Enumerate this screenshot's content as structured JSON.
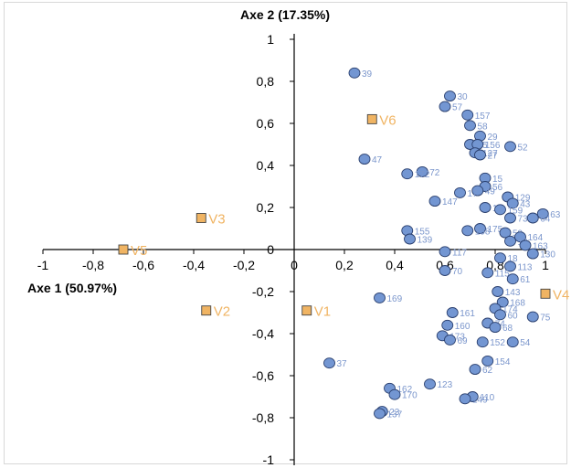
{
  "chart_data": {
    "type": "scatter",
    "xlabel": "Axe 1 (50.97%)",
    "ylabel": "Axe 2 (17.35%)",
    "xlim": [
      -1,
      1
    ],
    "ylim": [
      -1,
      1
    ],
    "x_ticks": [
      "-1",
      "-0,8",
      "-0,6",
      "-0,4",
      "-0,2",
      "0",
      "0,2",
      "0,4",
      "0,6",
      "0,8",
      "1"
    ],
    "y_ticks": [
      "1",
      "0,8",
      "0,6",
      "0,4",
      "0,2",
      "0",
      "-0,2",
      "-0,4",
      "-0,6",
      "-0,8",
      "-1"
    ],
    "colors": {
      "observation": "#7396d2",
      "observation_label": "#7b96cc",
      "variable": "#f0b463"
    },
    "observations": [
      {
        "label": "39",
        "x": 0.24,
        "y": 0.84
      },
      {
        "label": "30",
        "x": 0.62,
        "y": 0.73
      },
      {
        "label": "57",
        "x": 0.6,
        "y": 0.68
      },
      {
        "label": "157",
        "x": 0.69,
        "y": 0.64
      },
      {
        "label": "58",
        "x": 0.7,
        "y": 0.59
      },
      {
        "label": "29",
        "x": 0.74,
        "y": 0.54
      },
      {
        "label": "55",
        "x": 0.7,
        "y": 0.5
      },
      {
        "label": "156",
        "x": 0.73,
        "y": 0.5
      },
      {
        "label": "52",
        "x": 0.86,
        "y": 0.49
      },
      {
        "label": "127",
        "x": 0.72,
        "y": 0.46
      },
      {
        "label": "27",
        "x": 0.74,
        "y": 0.45
      },
      {
        "label": "47",
        "x": 0.28,
        "y": 0.43
      },
      {
        "label": "72",
        "x": 0.51,
        "y": 0.37
      },
      {
        "label": "172",
        "x": 0.45,
        "y": 0.36
      },
      {
        "label": "15",
        "x": 0.76,
        "y": 0.34
      },
      {
        "label": "56",
        "x": 0.76,
        "y": 0.3
      },
      {
        "label": "49",
        "x": 0.73,
        "y": 0.28
      },
      {
        "label": "17",
        "x": 0.66,
        "y": 0.27
      },
      {
        "label": "129",
        "x": 0.85,
        "y": 0.25
      },
      {
        "label": "43",
        "x": 0.87,
        "y": 0.22
      },
      {
        "label": "147",
        "x": 0.56,
        "y": 0.23
      },
      {
        "label": "10",
        "x": 0.76,
        "y": 0.2
      },
      {
        "label": "159",
        "x": 0.82,
        "y": 0.19
      },
      {
        "label": "63",
        "x": 0.99,
        "y": 0.17
      },
      {
        "label": "73",
        "x": 0.86,
        "y": 0.15
      },
      {
        "label": "64",
        "x": 0.95,
        "y": 0.15
      },
      {
        "label": "155",
        "x": 0.45,
        "y": 0.09
      },
      {
        "label": "175",
        "x": 0.74,
        "y": 0.1
      },
      {
        "label": "59",
        "x": 0.84,
        "y": 0.08
      },
      {
        "label": "164",
        "x": 0.9,
        "y": 0.06
      },
      {
        "label": "139",
        "x": 0.46,
        "y": 0.05
      },
      {
        "label": "158",
        "x": 0.69,
        "y": 0.09
      },
      {
        "label": "13",
        "x": 0.86,
        "y": 0.04
      },
      {
        "label": "163",
        "x": 0.92,
        "y": 0.02
      },
      {
        "label": "117",
        "x": 0.6,
        "y": -0.01
      },
      {
        "label": "130",
        "x": 0.95,
        "y": -0.02
      },
      {
        "label": "18",
        "x": 0.82,
        "y": -0.04
      },
      {
        "label": "113",
        "x": 0.86,
        "y": -0.08
      },
      {
        "label": "70",
        "x": 0.6,
        "y": -0.1
      },
      {
        "label": "115",
        "x": 0.77,
        "y": -0.11
      },
      {
        "label": "61",
        "x": 0.87,
        "y": -0.14
      },
      {
        "label": "143",
        "x": 0.81,
        "y": -0.2
      },
      {
        "label": "169",
        "x": 0.34,
        "y": -0.23
      },
      {
        "label": "168",
        "x": 0.83,
        "y": -0.25
      },
      {
        "label": "161",
        "x": 0.63,
        "y": -0.3
      },
      {
        "label": "174",
        "x": 0.8,
        "y": -0.28
      },
      {
        "label": "60",
        "x": 0.82,
        "y": -0.31
      },
      {
        "label": "75",
        "x": 0.95,
        "y": -0.32
      },
      {
        "label": "160",
        "x": 0.61,
        "y": -0.36
      },
      {
        "label": "74",
        "x": 0.77,
        "y": -0.35
      },
      {
        "label": "68",
        "x": 0.8,
        "y": -0.37
      },
      {
        "label": "173",
        "x": 0.59,
        "y": -0.41
      },
      {
        "label": "69",
        "x": 0.62,
        "y": -0.43
      },
      {
        "label": "152",
        "x": 0.75,
        "y": -0.44
      },
      {
        "label": "54",
        "x": 0.87,
        "y": -0.44
      },
      {
        "label": "154",
        "x": 0.77,
        "y": -0.53
      },
      {
        "label": "37",
        "x": 0.14,
        "y": -0.54
      },
      {
        "label": "62",
        "x": 0.72,
        "y": -0.57
      },
      {
        "label": "123",
        "x": 0.54,
        "y": -0.64
      },
      {
        "label": "162",
        "x": 0.38,
        "y": -0.66
      },
      {
        "label": "170",
        "x": 0.4,
        "y": -0.69
      },
      {
        "label": "110",
        "x": 0.71,
        "y": -0.7
      },
      {
        "label": "149",
        "x": 0.68,
        "y": -0.71
      },
      {
        "label": "23",
        "x": 0.35,
        "y": -0.77
      },
      {
        "label": "137",
        "x": 0.34,
        "y": -0.78
      }
    ],
    "variables": [
      {
        "label": "V6",
        "x": 0.31,
        "y": 0.62
      },
      {
        "label": "V3",
        "x": -0.37,
        "y": 0.15
      },
      {
        "label": "V5",
        "x": -0.68,
        "y": 0.0
      },
      {
        "label": "V2",
        "x": -0.35,
        "y": -0.29
      },
      {
        "label": "V1",
        "x": 0.05,
        "y": -0.29
      },
      {
        "label": "V4",
        "x": 1.0,
        "y": -0.21
      }
    ]
  }
}
